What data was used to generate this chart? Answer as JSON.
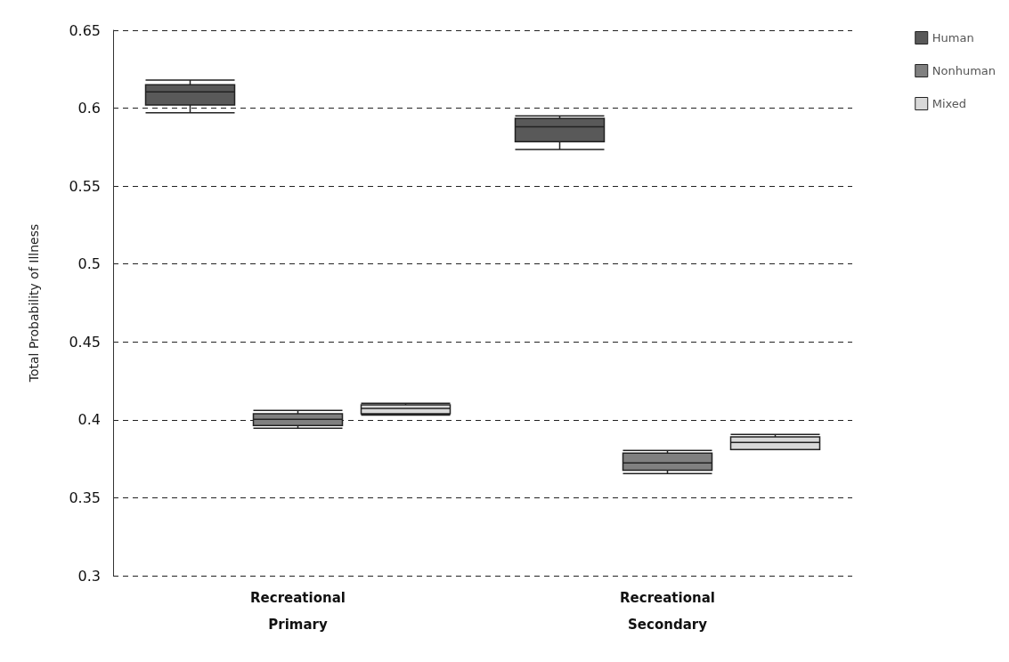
{
  "chart_data": {
    "type": "box",
    "ylabel": "Total Probability of Illness",
    "categories": [
      "Recreational\nPrimary",
      "Recreational\nSecondary"
    ],
    "ylim": [
      0.3,
      0.65
    ],
    "yticks": [
      0.3,
      0.35,
      0.4,
      0.45,
      0.5,
      0.55,
      0.6,
      0.65
    ],
    "grid": "y",
    "legend": "top right",
    "series": [
      {
        "name": "Human",
        "color": "#595959",
        "boxes": [
          {
            "low": 0.597,
            "q1": 0.602,
            "median": 0.6105,
            "q3": 0.615,
            "high": 0.618
          },
          {
            "low": 0.5735,
            "q1": 0.5785,
            "median": 0.588,
            "q3": 0.5935,
            "high": 0.595
          }
        ]
      },
      {
        "name": "Nonhuman",
        "color": "#808080",
        "boxes": [
          {
            "low": 0.3947,
            "q1": 0.3964,
            "median": 0.4004,
            "q3": 0.4039,
            "high": 0.406
          },
          {
            "low": 0.3655,
            "q1": 0.3677,
            "median": 0.3723,
            "q3": 0.3786,
            "high": 0.3803
          }
        ]
      },
      {
        "name": "Mixed",
        "color": "#d9d9d9",
        "boxes": [
          {
            "low": 0.403,
            "q1": 0.4039,
            "median": 0.4073,
            "q3": 0.4096,
            "high": 0.4106
          },
          {
            "low": 0.381,
            "q1": 0.381,
            "median": 0.3855,
            "q3": 0.389,
            "high": 0.3906
          }
        ]
      }
    ]
  }
}
